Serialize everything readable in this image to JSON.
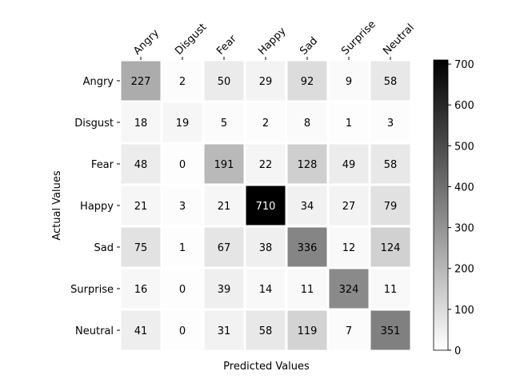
{
  "chart_data": {
    "type": "heatmap",
    "title": "",
    "xlabel": "Predicted Values",
    "ylabel": "Actual Values",
    "x_categories": [
      "Angry",
      "Disgust",
      "Fear",
      "Happy",
      "Sad",
      "Surprise",
      "Neutral"
    ],
    "y_categories": [
      "Angry",
      "Disgust",
      "Fear",
      "Happy",
      "Sad",
      "Surprise",
      "Neutral"
    ],
    "values": [
      [
        227,
        2,
        50,
        29,
        92,
        9,
        58
      ],
      [
        18,
        19,
        5,
        2,
        8,
        1,
        3
      ],
      [
        48,
        0,
        191,
        22,
        128,
        49,
        58
      ],
      [
        21,
        3,
        21,
        710,
        34,
        27,
        79
      ],
      [
        75,
        1,
        67,
        38,
        336,
        12,
        124
      ],
      [
        16,
        0,
        39,
        14,
        11,
        324,
        11
      ],
      [
        41,
        0,
        31,
        58,
        119,
        7,
        351
      ]
    ],
    "colorbar": {
      "min": 0,
      "max": 710,
      "ticks": [
        0,
        100,
        200,
        300,
        400,
        500,
        600,
        700
      ],
      "colormap": "greys",
      "low_color": "#ffffff",
      "high_color": "#000000"
    },
    "annotate_cells": true,
    "grid": false,
    "x_tick_position": "top",
    "x_tick_rotation": 45
  }
}
